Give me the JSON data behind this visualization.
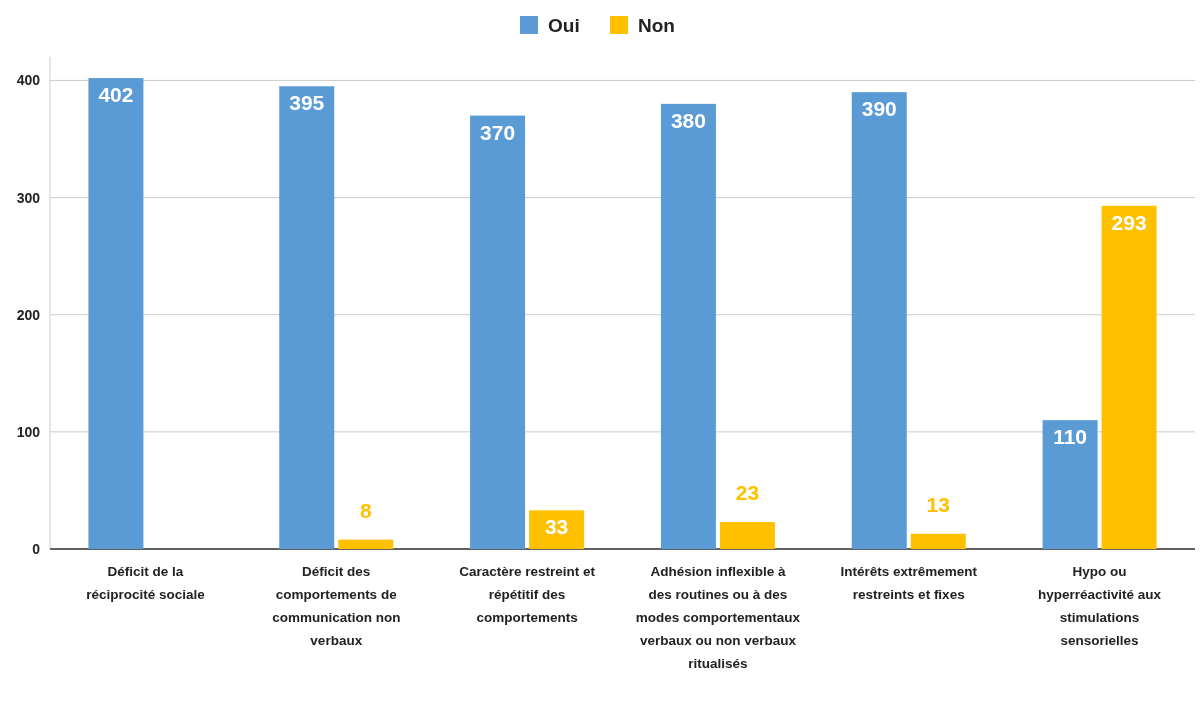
{
  "chart_data": {
    "type": "bar",
    "categories": [
      "Déficit de la réciprocité sociale",
      "Déficit des comportements de communication non verbaux",
      "Caractère restreint et répétitif des comportements",
      "Adhésion inflexible à des routines ou à des modes comportementaux verbaux ou non verbaux ritualisés",
      "Intérêts extrêmement restreints et fixes",
      "Hypo ou hyperréactivité aux stimulations sensorielles"
    ],
    "series": [
      {
        "name": "Oui",
        "color": "#5b9bd5",
        "values": [
          402,
          395,
          370,
          380,
          390,
          110
        ]
      },
      {
        "name": "Non",
        "color": "#ffc000",
        "values": [
          null,
          8,
          33,
          23,
          13,
          293
        ]
      }
    ],
    "ylim": [
      0,
      420
    ],
    "yticks": [
      0,
      100,
      200,
      300,
      400
    ],
    "grid": "y",
    "legend": "top",
    "data_labels": true
  }
}
